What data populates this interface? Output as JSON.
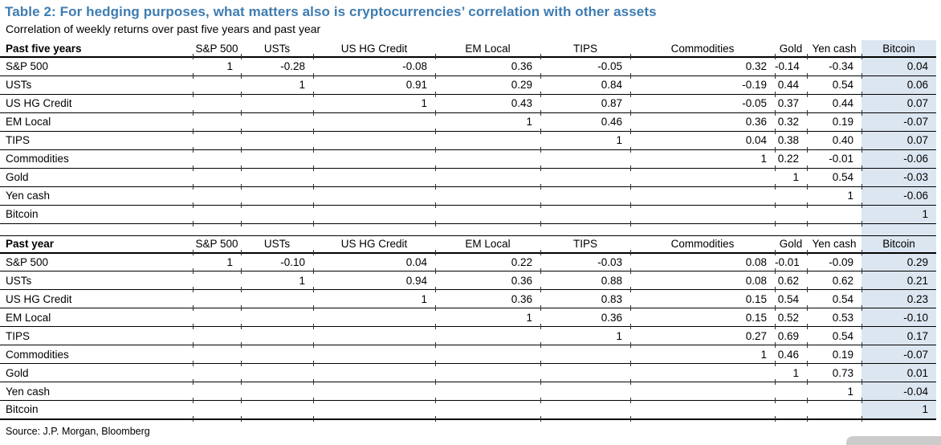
{
  "title": "Table 2: For hedging purposes, what matters also is cryptocurrencies’ correlation with other assets",
  "subtitle": "Correlation of weekly returns over past five years and past year",
  "source": "Source: J.P. Morgan, Bloomberg",
  "colors": {
    "title_blue": "#3e7cb0",
    "highlight_column": "#dce6f1",
    "grid_line": "#000000"
  },
  "highlight_column_name": "Bitcoin",
  "chart_data": [
    {
      "type": "table",
      "title": "Past five years",
      "columns": [
        "S&P 500",
        "USTs",
        "US HG Credit",
        "EM Local",
        "TIPS",
        "Commodities",
        "Gold",
        "Yen cash",
        "Bitcoin"
      ],
      "rows": [
        {
          "label": "S&P 500",
          "values": [
            "1",
            "-0.28",
            "-0.08",
            "0.36",
            "-0.05",
            "0.32",
            "-0.14",
            "-0.34",
            "0.04"
          ]
        },
        {
          "label": "USTs",
          "values": [
            "",
            "1",
            "0.91",
            "0.29",
            "0.84",
            "-0.19",
            "0.44",
            "0.54",
            "0.06"
          ]
        },
        {
          "label": "US HG Credit",
          "values": [
            "",
            "",
            "1",
            "0.43",
            "0.87",
            "-0.05",
            "0.37",
            "0.44",
            "0.07"
          ]
        },
        {
          "label": "EM Local",
          "values": [
            "",
            "",
            "",
            "1",
            "0.46",
            "0.36",
            "0.32",
            "0.19",
            "-0.07"
          ]
        },
        {
          "label": "TIPS",
          "values": [
            "",
            "",
            "",
            "",
            "1",
            "0.04",
            "0.38",
            "0.40",
            "0.07"
          ]
        },
        {
          "label": "Commodities",
          "values": [
            "",
            "",
            "",
            "",
            "",
            "1",
            "0.22",
            "-0.01",
            "-0.06"
          ]
        },
        {
          "label": "Gold",
          "values": [
            "",
            "",
            "",
            "",
            "",
            "",
            "1",
            "0.54",
            "-0.03"
          ]
        },
        {
          "label": "Yen cash",
          "values": [
            "",
            "",
            "",
            "",
            "",
            "",
            "",
            "1",
            "-0.06"
          ]
        },
        {
          "label": "Bitcoin",
          "values": [
            "",
            "",
            "",
            "",
            "",
            "",
            "",
            "",
            "1"
          ]
        }
      ]
    },
    {
      "type": "table",
      "title": "Past year",
      "columns": [
        "S&P 500",
        "USTs",
        "US HG Credit",
        "EM Local",
        "TIPS",
        "Commodities",
        "Gold",
        "Yen cash",
        "Bitcoin"
      ],
      "rows": [
        {
          "label": "S&P 500",
          "values": [
            "1",
            "-0.10",
            "0.04",
            "0.22",
            "-0.03",
            "0.08",
            "-0.01",
            "-0.09",
            "0.29"
          ]
        },
        {
          "label": "USTs",
          "values": [
            "",
            "1",
            "0.94",
            "0.36",
            "0.88",
            "0.08",
            "0.62",
            "0.62",
            "0.21"
          ]
        },
        {
          "label": "US HG Credit",
          "values": [
            "",
            "",
            "1",
            "0.36",
            "0.83",
            "0.15",
            "0.54",
            "0.54",
            "0.23"
          ]
        },
        {
          "label": "EM Local",
          "values": [
            "",
            "",
            "",
            "1",
            "0.36",
            "0.15",
            "0.52",
            "0.53",
            "-0.10"
          ]
        },
        {
          "label": "TIPS",
          "values": [
            "",
            "",
            "",
            "",
            "1",
            "0.27",
            "0.69",
            "0.54",
            "0.17"
          ]
        },
        {
          "label": "Commodities",
          "values": [
            "",
            "",
            "",
            "",
            "",
            "1",
            "0.46",
            "0.19",
            "-0.07"
          ]
        },
        {
          "label": "Gold",
          "values": [
            "",
            "",
            "",
            "",
            "",
            "",
            "1",
            "0.73",
            "0.01"
          ]
        },
        {
          "label": "Yen cash",
          "values": [
            "",
            "",
            "",
            "",
            "",
            "",
            "",
            "1",
            "-0.04"
          ]
        },
        {
          "label": "Bitcoin",
          "values": [
            "",
            "",
            "",
            "",
            "",
            "",
            "",
            "",
            "1"
          ]
        }
      ]
    }
  ]
}
